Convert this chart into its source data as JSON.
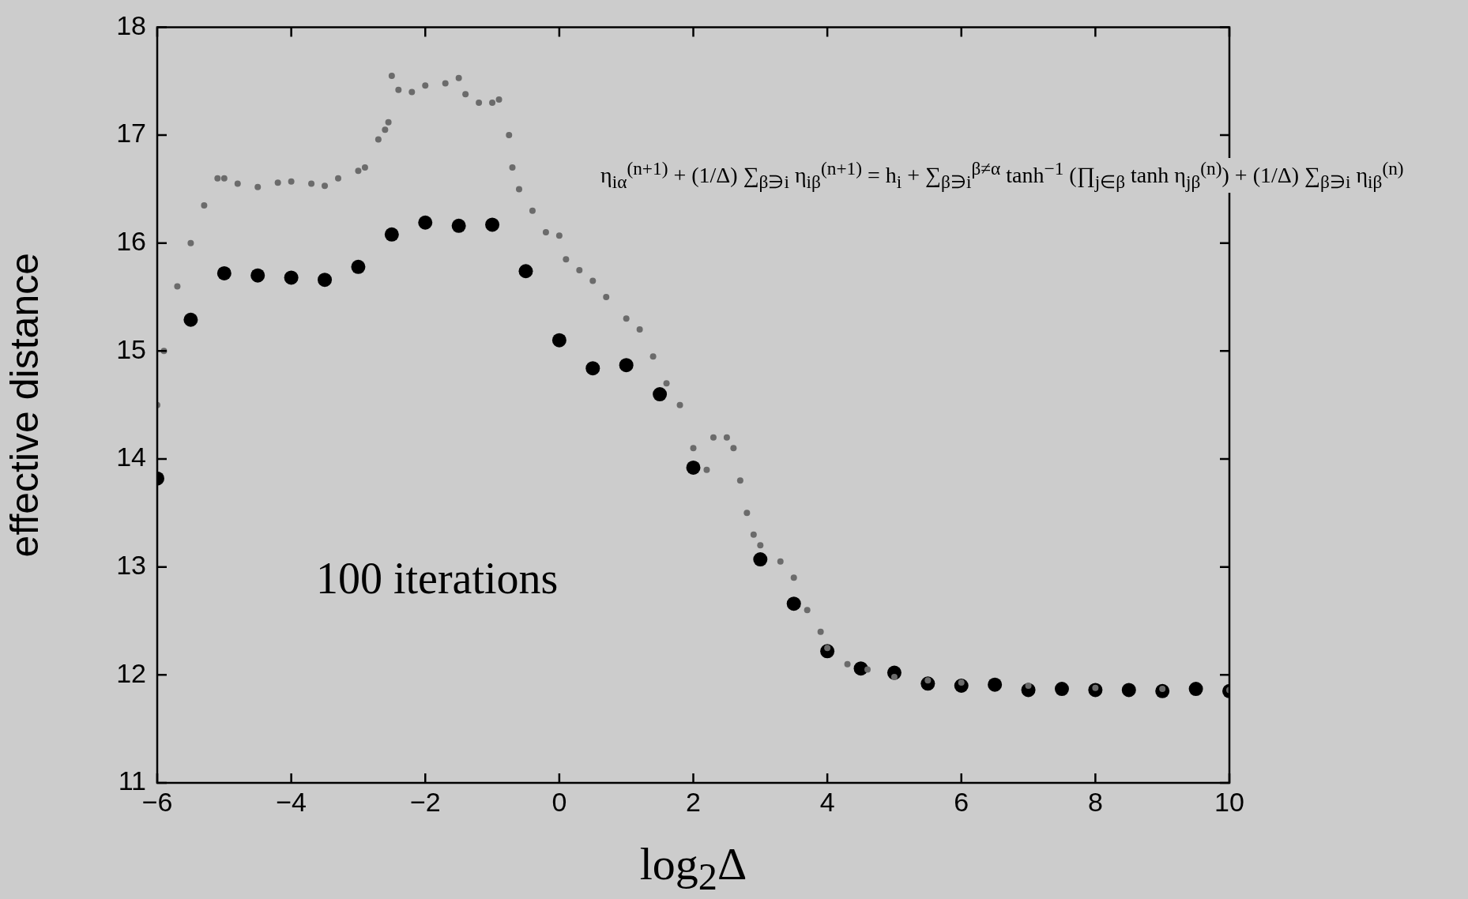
{
  "chart_data": {
    "type": "scatter",
    "xlabel": "log$_{2}$Δ",
    "ylabel": "effective distance",
    "xlim": [
      -6,
      10
    ],
    "xticks": [
      {
        "value": -6,
        "label": "−6"
      },
      {
        "value": -4,
        "label": "−4"
      },
      {
        "value": -2,
        "label": "−2"
      },
      0,
      2,
      4,
      6,
      8,
      10
    ],
    "ylim": [
      11,
      18
    ],
    "yticks": [
      11,
      12,
      13,
      14,
      15,
      16,
      17,
      18
    ],
    "grid": false,
    "legend": false,
    "marker": "circle",
    "annotations": [
      "η$_{iα}$$^{(n+1)}$ + (1/Δ) ∑$_{β∋i}$ η$_{iβ}$$^{(n+1)}$ = h$_{i}$ + ∑$_{β∋i}$$^{β≠α}$ tanh$^{−1}$ (∏$_{j∈β}$ tanh η$_{jβ}$$^{(n)}$) + (1/Δ) ∑$_{β∋i}$ η$_{iβ}$$^{(n)}$",
      "100 iterations"
    ],
    "series": [
      {
        "color": "#6b6b6b",
        "x": [
          -6,
          -5.9,
          -5.7,
          -5.5,
          -5.3,
          -5.1,
          -5,
          -4.8,
          -4.5,
          -4.2,
          -4,
          -3.7,
          -3.5,
          -3.3,
          -3,
          -2.9,
          -2.7,
          -2.6,
          -2.55,
          -2.5,
          -2.4,
          -2.2,
          -2,
          -1.7,
          -1.5,
          -1.4,
          -1.2,
          -1,
          -0.9,
          -0.75,
          -0.7,
          -0.6,
          -0.4,
          -0.2,
          0,
          0.1,
          0.3,
          0.5,
          0.7,
          1,
          1.2,
          1.4,
          1.6,
          1.8,
          2,
          2.2,
          2.3,
          2.5,
          2.6,
          2.7,
          2.8,
          2.9,
          3,
          3.3,
          3.5,
          3.7,
          3.9,
          4,
          4.3,
          4.6,
          5,
          5.5,
          6,
          7,
          8,
          9,
          10
        ],
        "values": [
          14.5,
          15.0,
          15.6,
          16.0,
          16.35,
          16.6,
          16.6,
          16.55,
          16.52,
          16.56,
          16.57,
          16.55,
          16.53,
          16.6,
          16.67,
          16.7,
          16.96,
          17.05,
          17.12,
          17.55,
          17.42,
          17.4,
          17.46,
          17.48,
          17.53,
          17.38,
          17.3,
          17.3,
          17.33,
          17.0,
          16.7,
          16.5,
          16.3,
          16.1,
          16.07,
          15.85,
          15.75,
          15.65,
          15.5,
          15.3,
          15.2,
          14.95,
          14.7,
          14.5,
          14.1,
          13.9,
          14.2,
          14.2,
          14.1,
          13.8,
          13.5,
          13.3,
          13.2,
          13.05,
          12.9,
          12.6,
          12.4,
          12.25,
          12.1,
          12.05,
          11.98,
          11.95,
          11.93,
          11.9,
          11.88,
          11.87,
          11.86
        ]
      },
      {
        "color": "#000000",
        "x": [
          -6,
          -5.5,
          -5,
          -4.5,
          -4,
          -3.5,
          -3,
          -2.5,
          -2,
          -1.5,
          -1,
          -0.5,
          0,
          0.5,
          1,
          1.5,
          2,
          3,
          3.5,
          4,
          4.5,
          5,
          5.5,
          6,
          6.5,
          7,
          7.5,
          8,
          8.5,
          9,
          9.5,
          10
        ],
        "values": [
          13.82,
          15.29,
          15.72,
          15.7,
          15.68,
          15.66,
          15.78,
          16.08,
          16.19,
          16.16,
          16.17,
          15.74,
          15.1,
          14.84,
          14.87,
          14.6,
          13.92,
          13.07,
          12.66,
          12.22,
          12.06,
          12.02,
          11.92,
          11.9,
          11.91,
          11.86,
          11.87,
          11.86,
          11.86,
          11.85,
          11.87,
          11.85
        ]
      }
    ]
  }
}
